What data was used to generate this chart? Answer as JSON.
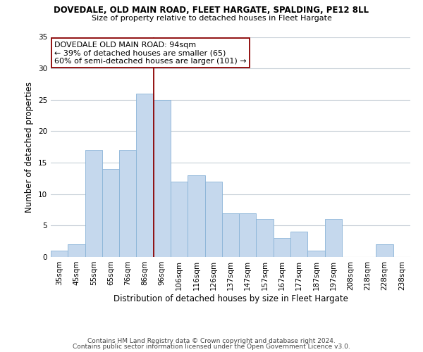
{
  "title": "DOVEDALE, OLD MAIN ROAD, FLEET HARGATE, SPALDING, PE12 8LL",
  "subtitle": "Size of property relative to detached houses in Fleet Hargate",
  "xlabel": "Distribution of detached houses by size in Fleet Hargate",
  "ylabel": "Number of detached properties",
  "categories": [
    "35sqm",
    "45sqm",
    "55sqm",
    "65sqm",
    "76sqm",
    "86sqm",
    "96sqm",
    "106sqm",
    "116sqm",
    "126sqm",
    "137sqm",
    "147sqm",
    "157sqm",
    "167sqm",
    "177sqm",
    "187sqm",
    "197sqm",
    "208sqm",
    "218sqm",
    "228sqm",
    "238sqm"
  ],
  "values": [
    1,
    2,
    17,
    14,
    17,
    26,
    25,
    12,
    13,
    12,
    7,
    7,
    6,
    3,
    4,
    1,
    6,
    0,
    0,
    2,
    0
  ],
  "bar_color": "#c5d8ed",
  "bar_edge_color": "#8ab4d8",
  "vline_color": "#8b0000",
  "vline_x_index": 6,
  "annotation_line1": "DOVEDALE OLD MAIN ROAD: 94sqm",
  "annotation_line2": "← 39% of detached houses are smaller (65)",
  "annotation_line3": "60% of semi-detached houses are larger (101) →",
  "ylim": [
    0,
    35
  ],
  "yticks": [
    0,
    5,
    10,
    15,
    20,
    25,
    30,
    35
  ],
  "footer1": "Contains HM Land Registry data © Crown copyright and database right 2024.",
  "footer2": "Contains public sector information licensed under the Open Government Licence v3.0.",
  "background_color": "#ffffff",
  "grid_color": "#c8d0d8",
  "title_fontsize": 8.5,
  "subtitle_fontsize": 8.0,
  "axis_label_fontsize": 8.5,
  "tick_fontsize": 7.5,
  "annotation_fontsize": 8.0,
  "footer_fontsize": 6.5
}
